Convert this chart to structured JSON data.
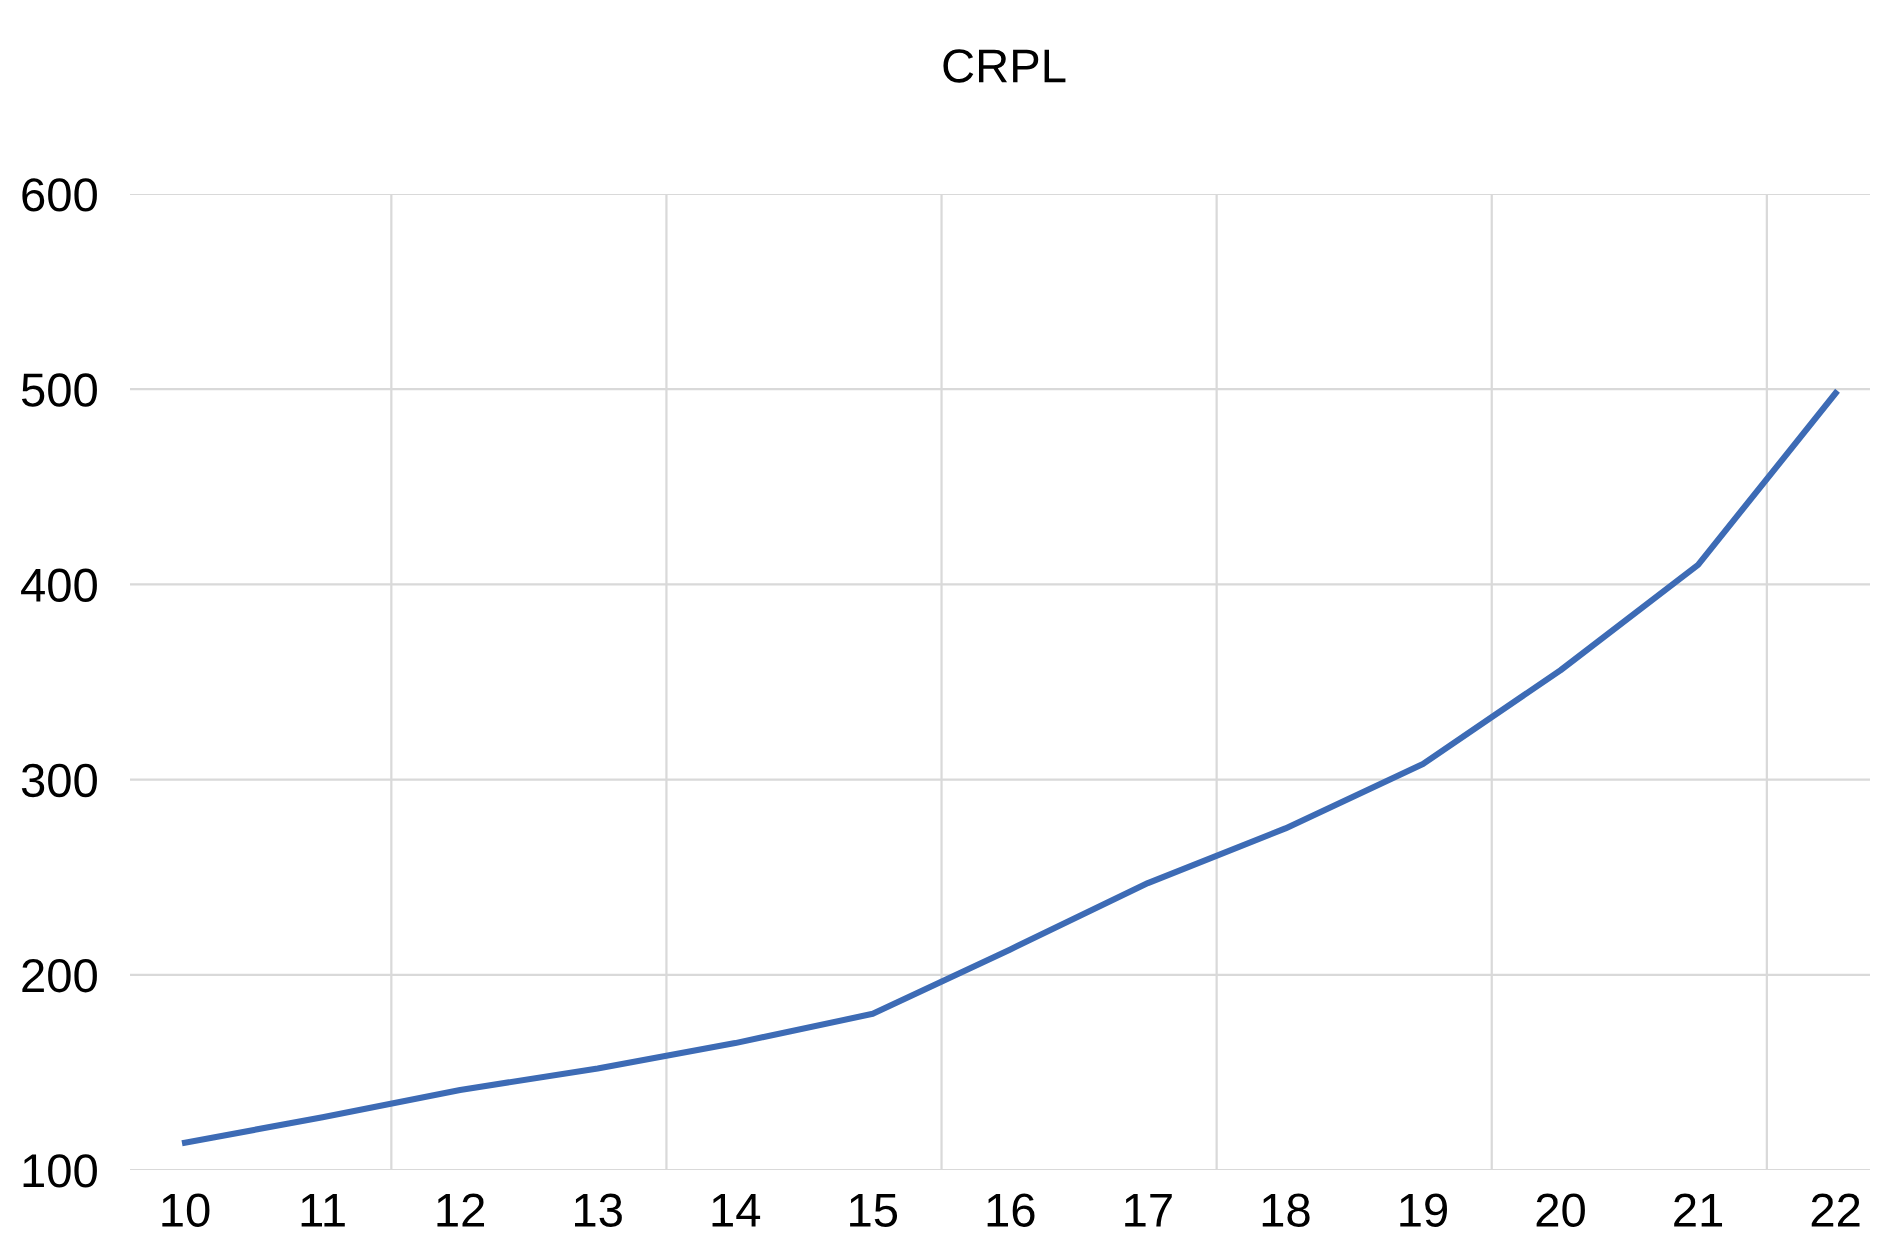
{
  "chart_data": {
    "type": "line",
    "title": "CRPL",
    "categories": [
      "10",
      "11",
      "12",
      "13",
      "14",
      "15",
      "16",
      "17",
      "18",
      "19",
      "20",
      "21",
      "22"
    ],
    "series": [
      {
        "color": "#3d6bb5",
        "values": [
          114,
          127,
          141,
          152,
          165,
          180,
          213,
          247,
          275,
          308,
          356,
          410,
          498
        ]
      }
    ],
    "ylim": [
      100,
      600
    ],
    "yticks": [
      100,
      200,
      300,
      400,
      500,
      600
    ],
    "grid": true,
    "legend": false,
    "marker": "none",
    "line_style": "solid"
  }
}
